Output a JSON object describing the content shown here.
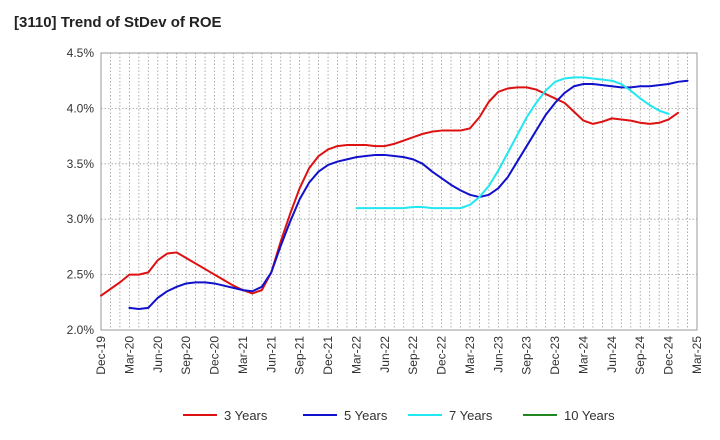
{
  "title": "[3110]  Trend of StDev of ROE",
  "chart_data": {
    "type": "line",
    "title": "[3110]  Trend of StDev of ROE",
    "ylim": [
      2.0,
      4.5
    ],
    "yticks": [
      2.0,
      2.5,
      3.0,
      3.5,
      4.0,
      4.5
    ],
    "ytick_labels": [
      "2.0%",
      "2.5%",
      "3.0%",
      "3.5%",
      "4.0%",
      "4.5%"
    ],
    "xtick_labels": [
      "Dec-19",
      "Mar-20",
      "Jun-20",
      "Sep-20",
      "Dec-20",
      "Mar-21",
      "Jun-21",
      "Sep-21",
      "Dec-21",
      "Mar-22",
      "Jun-22",
      "Sep-22",
      "Dec-22",
      "Mar-23",
      "Jun-23",
      "Sep-23",
      "Dec-23",
      "Mar-24",
      "Jun-24",
      "Sep-24",
      "Dec-24",
      "Mar-25"
    ],
    "grid": true,
    "legend_position": "bottom",
    "series": [
      {
        "name": "3 Years",
        "color": "#dd1111",
        "start_month_index": 0,
        "values": [
          2.31,
          2.37,
          2.43,
          2.5,
          2.5,
          2.52,
          2.63,
          2.69,
          2.7,
          2.65,
          2.6,
          2.55,
          2.5,
          2.45,
          2.4,
          2.36,
          2.33,
          2.36,
          2.52,
          2.8,
          3.05,
          3.28,
          3.46,
          3.57,
          3.63,
          3.66,
          3.67,
          3.67,
          3.67,
          3.66,
          3.66,
          3.68,
          3.71,
          3.74,
          3.77,
          3.79,
          3.8,
          3.8,
          3.8,
          3.82,
          3.92,
          4.06,
          4.15,
          4.18,
          4.19,
          4.19,
          4.17,
          4.13,
          4.09,
          4.05,
          3.97,
          3.89,
          3.86,
          3.88,
          3.91,
          3.9,
          3.89,
          3.87,
          3.86,
          3.87,
          3.9,
          3.96
        ]
      },
      {
        "name": "5 Years",
        "color": "#1111cc",
        "start_month_index": 3,
        "values": [
          2.2,
          2.19,
          2.2,
          2.29,
          2.35,
          2.39,
          2.42,
          2.43,
          2.43,
          2.42,
          2.4,
          2.38,
          2.36,
          2.35,
          2.39,
          2.52,
          2.76,
          2.98,
          3.18,
          3.33,
          3.43,
          3.49,
          3.52,
          3.54,
          3.56,
          3.57,
          3.58,
          3.58,
          3.57,
          3.56,
          3.54,
          3.5,
          3.43,
          3.37,
          3.31,
          3.26,
          3.22,
          3.2,
          3.22,
          3.28,
          3.38,
          3.52,
          3.66,
          3.8,
          3.94,
          4.05,
          4.14,
          4.2,
          4.22,
          4.22,
          4.21,
          4.2,
          4.19,
          4.19,
          4.2,
          4.2,
          4.21,
          4.22,
          4.24,
          4.25
        ]
      },
      {
        "name": "7 Years",
        "color": "#22e6f0",
        "start_month_index": 27,
        "values": [
          3.1,
          3.1,
          3.1,
          3.1,
          3.1,
          3.1,
          3.11,
          3.11,
          3.1,
          3.1,
          3.1,
          3.1,
          3.13,
          3.2,
          3.3,
          3.44,
          3.6,
          3.76,
          3.92,
          4.05,
          4.16,
          4.24,
          4.27,
          4.28,
          4.28,
          4.27,
          4.26,
          4.25,
          4.22,
          4.16,
          4.09,
          4.03,
          3.98,
          3.95
        ]
      },
      {
        "name": "10 Years",
        "color": "#228822",
        "start_month_index": 0,
        "values": []
      }
    ]
  }
}
